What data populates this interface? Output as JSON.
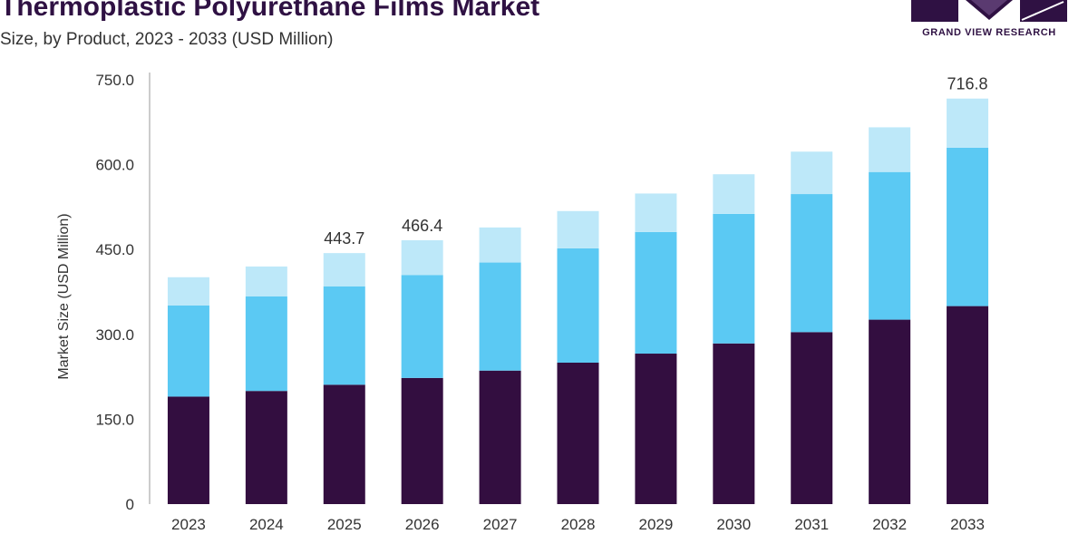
{
  "header": {
    "title": "Thermoplastic Polyurethane Films Market",
    "subtitle": "Size, by Product, 2023 - 2033 (USD Million)"
  },
  "logo": {
    "text": "GRAND VIEW RESEARCH",
    "colors": {
      "primary": "#2f1143"
    }
  },
  "chart_data": {
    "type": "bar",
    "stacked": true,
    "categories": [
      "2023",
      "2024",
      "2025",
      "2026",
      "2027",
      "2028",
      "2029",
      "2030",
      "2031",
      "2032",
      "2033"
    ],
    "series": [
      {
        "color": "#330e40",
        "values": [
          190,
          200,
          211,
          223,
          236,
          250,
          266,
          284,
          304,
          326,
          350
        ]
      },
      {
        "color": "#5bc9f3",
        "values": [
          161,
          167,
          174,
          182,
          191,
          202,
          215,
          229,
          244,
          261,
          280
        ]
      },
      {
        "color": "#bde8f9",
        "values": [
          50,
          53,
          58.7,
          61.4,
          62,
          66,
          68,
          70,
          75,
          79,
          86.8
        ]
      }
    ],
    "data_labels": {
      "2025": "443.7",
      "2026": "466.4",
      "2033": "716.8"
    },
    "y_ticks": [
      "0",
      "150.0",
      "300.0",
      "450.0",
      "600.0",
      "750.0"
    ],
    "ylabel": "Market Size (USD Million)",
    "ylim": [
      0,
      750
    ],
    "grid": false,
    "legend": "none"
  }
}
